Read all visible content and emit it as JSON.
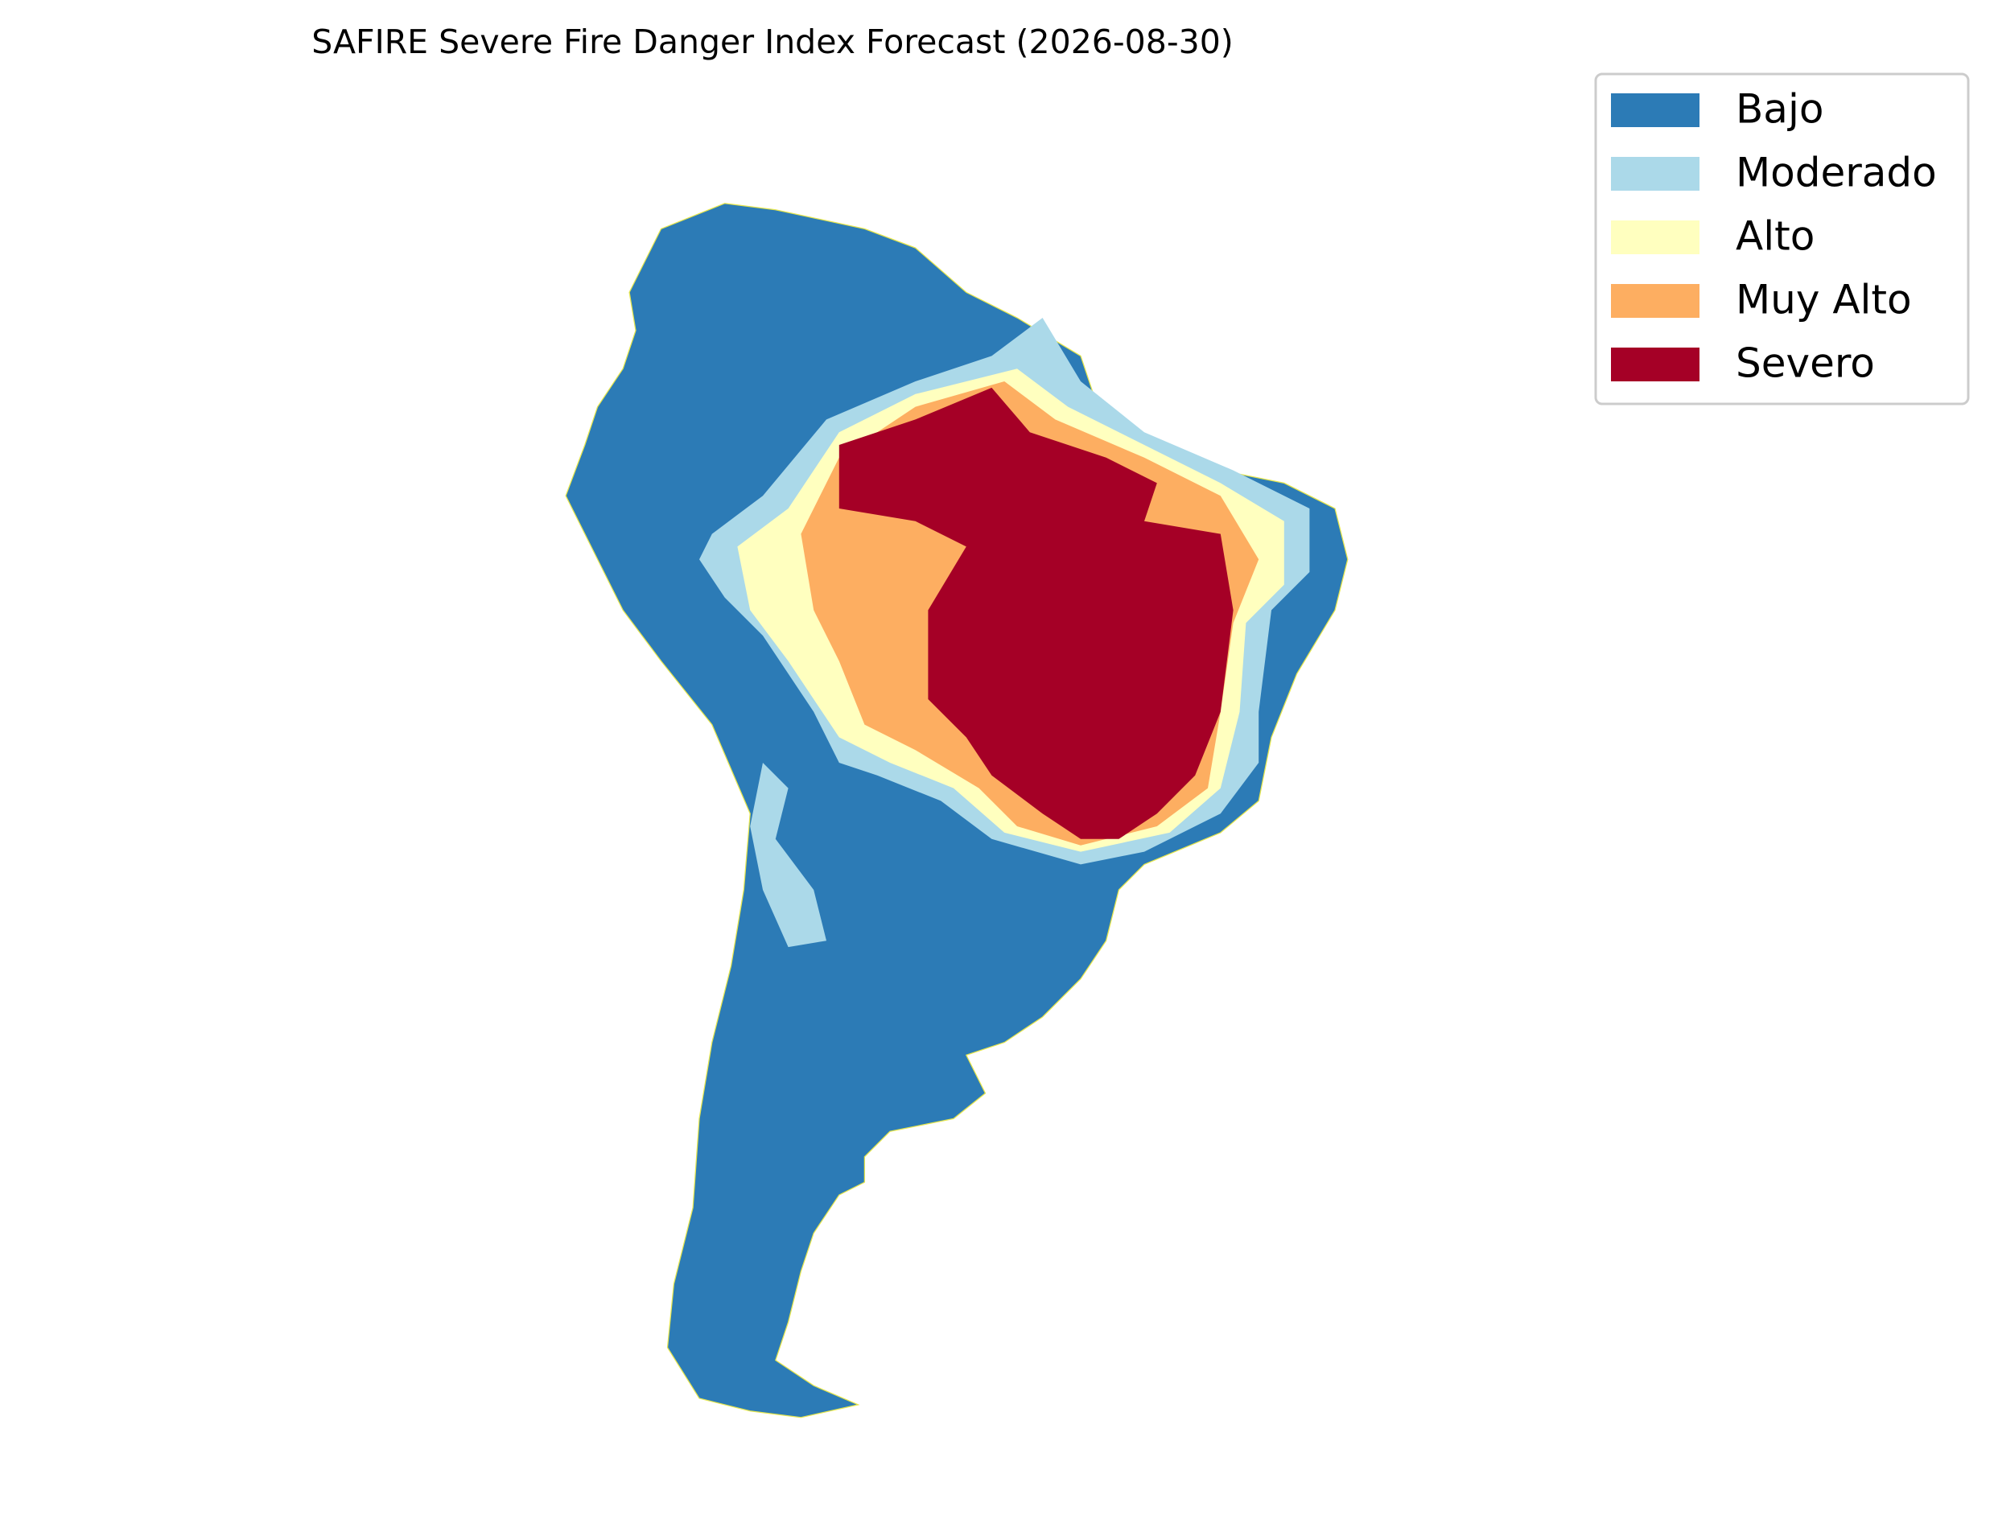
{
  "title": "SAFIRE Severe Fire Danger Index Forecast (2026-08-30)",
  "legend": {
    "items": [
      {
        "label": "Bajo",
        "color": "#2c7bb6"
      },
      {
        "label": "Moderado",
        "color": "#abd9e9"
      },
      {
        "label": "Alto",
        "color": "#ffffbf"
      },
      {
        "label": "Muy Alto",
        "color": "#fdae61"
      },
      {
        "label": "Severo",
        "color": "#a50026"
      }
    ]
  }
}
